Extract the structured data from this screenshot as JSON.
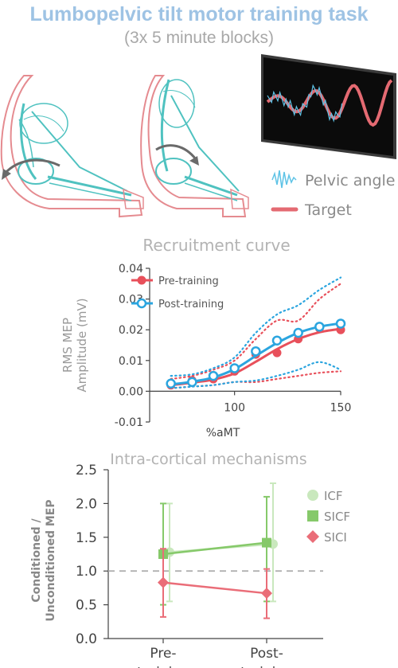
{
  "header": {
    "title": "Lumbopelvic tilt motor training task",
    "subtitle": "(3x 5 minute blocks)"
  },
  "illustration": {
    "figures": [
      "seated-skeleton-posterior-tilt",
      "seated-skeleton-anterior-tilt"
    ],
    "legend": [
      {
        "label": "Pelvic angle",
        "icon": "pelvic-angle-trace-icon",
        "color": "#5ec3e6"
      },
      {
        "label": "Target",
        "icon": "target-line-icon",
        "color": "#e46a72"
      }
    ],
    "colors": {
      "bone": "#4fc2c0",
      "body_outline": "#e58b90",
      "arrow": "#6a6a6a",
      "screen": "#0b0b0b"
    }
  },
  "chart_data": [
    {
      "type": "line",
      "title": "Recruitment curve",
      "xlabel": "%aMT",
      "ylabel": "RMS MEP Amplitude (mV)",
      "xlim": [
        60,
        150
      ],
      "ylim": [
        -0.01,
        0.04
      ],
      "x_ticks": [
        100,
        150
      ],
      "y_ticks": [
        -0.01,
        0.0,
        0.01,
        0.02,
        0.03,
        0.04
      ],
      "y_tick_labels": [
        "-0.01",
        "0.00",
        "0.01",
        "0.02",
        "0.03",
        "0.04"
      ],
      "legend_position": "top-left",
      "series": [
        {
          "name": "Pre-training",
          "color": "#e8505b",
          "marker": "filled-circle",
          "x": [
            70,
            80,
            90,
            100,
            110,
            120,
            130,
            140,
            150
          ],
          "y": [
            0.002,
            0.0035,
            0.004,
            0.0065,
            0.012,
            0.0125,
            0.017,
            0.0205,
            0.02
          ],
          "fit": [
            0.002,
            0.0028,
            0.0038,
            0.0058,
            0.0096,
            0.0137,
            0.017,
            0.0192,
            0.0203
          ],
          "ci_upper": [
            0.004,
            0.005,
            0.007,
            0.01,
            0.017,
            0.023,
            0.023,
            0.03,
            0.035
          ],
          "ci_lower": [
            0.001,
            0.0015,
            0.002,
            0.003,
            0.003,
            0.004,
            0.005,
            0.006,
            0.0065
          ]
        },
        {
          "name": "Post-training",
          "color": "#2ba5df",
          "marker": "open-circle",
          "x": [
            70,
            80,
            90,
            100,
            110,
            120,
            130,
            140,
            150
          ],
          "y": [
            0.0025,
            0.003,
            0.005,
            0.0075,
            0.013,
            0.0165,
            0.019,
            0.021,
            0.022
          ],
          "fit": [
            0.0022,
            0.0031,
            0.0045,
            0.0072,
            0.0115,
            0.0157,
            0.019,
            0.021,
            0.0221
          ],
          "ci_upper": [
            0.005,
            0.0055,
            0.0075,
            0.011,
            0.019,
            0.025,
            0.028,
            0.033,
            0.037
          ],
          "ci_lower": [
            0.001,
            0.0015,
            0.002,
            0.003,
            0.0035,
            0.005,
            0.007,
            0.0095,
            0.007
          ]
        }
      ]
    },
    {
      "type": "line",
      "title": "Intra-cortical mechanisms",
      "xlabel": "",
      "ylabel": "Conditioned / Unconditioned MEP",
      "ylim": [
        0,
        2.5
      ],
      "y_ticks": [
        0.0,
        0.5,
        1.0,
        1.5,
        2.0,
        2.5
      ],
      "y_tick_labels": [
        "0.0",
        "0.5",
        "1.0",
        "1.5",
        "2.0",
        "2.5"
      ],
      "categories": [
        "Pre-training",
        "Post-training"
      ],
      "category_labels": [
        [
          "Pre-",
          "training"
        ],
        [
          "Post-",
          "training"
        ]
      ],
      "reference_line": 1.0,
      "legend_position": "right",
      "series": [
        {
          "name": "ICF",
          "color": "#c9e8bd",
          "marker": "circle",
          "values": [
            1.28,
            1.4
          ],
          "err_low": [
            0.55,
            0.55
          ],
          "err_high": [
            2.0,
            2.3
          ]
        },
        {
          "name": "SICF",
          "color": "#86c96a",
          "marker": "square",
          "values": [
            1.25,
            1.42
          ],
          "err_low": [
            0.5,
            0.55
          ],
          "err_high": [
            2.0,
            2.1
          ]
        },
        {
          "name": "SICI",
          "color": "#ea6d78",
          "marker": "diamond",
          "values": [
            0.83,
            0.67
          ],
          "err_low": [
            0.32,
            0.3
          ],
          "err_high": [
            1.33,
            1.03
          ]
        }
      ]
    }
  ]
}
